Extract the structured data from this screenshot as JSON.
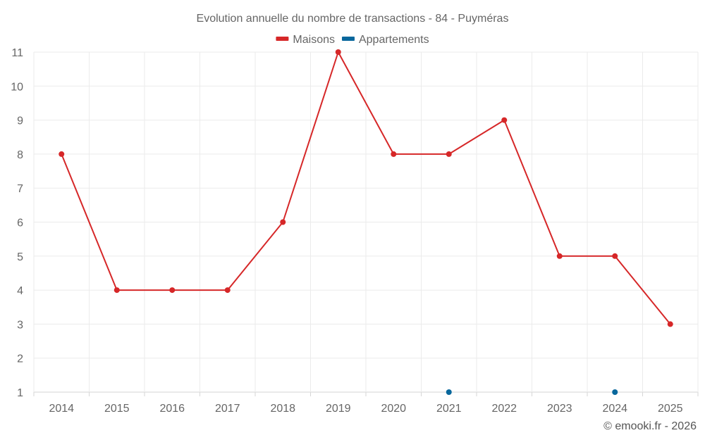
{
  "chart_data": {
    "type": "line",
    "title": "Evolution annuelle du nombre de transactions - 84 - Puyméras",
    "categories": [
      "2014",
      "2015",
      "2016",
      "2017",
      "2018",
      "2019",
      "2020",
      "2021",
      "2022",
      "2023",
      "2024",
      "2025"
    ],
    "series": [
      {
        "name": "Maisons",
        "color": "#d62728",
        "values": [
          8,
          4,
          4,
          4,
          6,
          11,
          8,
          8,
          9,
          5,
          5,
          3
        ]
      },
      {
        "name": "Appartements",
        "color": "#08679c",
        "values": [
          null,
          null,
          null,
          null,
          null,
          null,
          null,
          1,
          null,
          null,
          1,
          null
        ]
      }
    ],
    "y_ticks": [
      "1",
      "2",
      "3",
      "4",
      "5",
      "6",
      "7",
      "8",
      "9",
      "10",
      "11"
    ],
    "ylim": [
      1,
      11
    ],
    "grid": true,
    "legend_position": "top-center",
    "credit": "© emooki.fr - 2026"
  }
}
